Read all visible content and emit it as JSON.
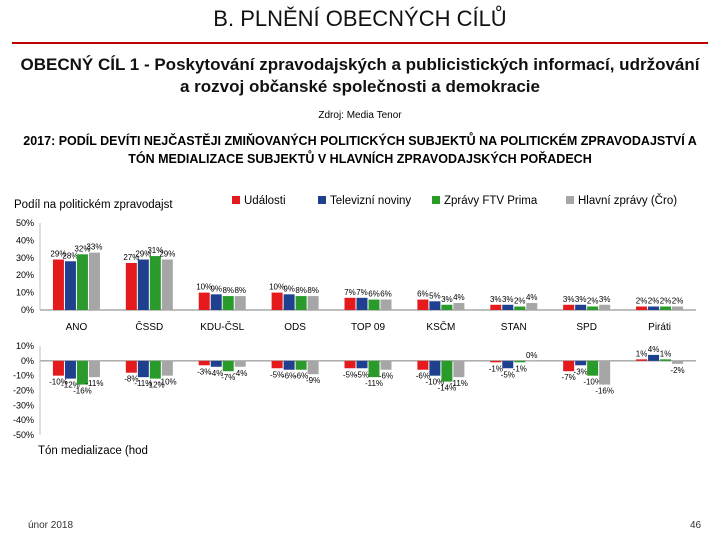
{
  "page": {
    "title": "B. PLNĚNÍ OBECNÝCH CÍLŮ",
    "goal": "OBECNÝ CÍL 1 - Poskytování zpravodajských a publicistických informací, udržování a rozvoj občanské společnosti a demokracie",
    "source": "Zdroj: Media Tenor",
    "subtitle": "2017: PODÍL DEVÍTI NEJČASTĚJI ZMIŇOVANÝCH POLITICKÝCH SUBJEKTŮ NA POLITICKÉM ZPRAVODAJSTVÍ A TÓN MEDIALIZACE SUBJEKTŮ V HLAVNÍCH ZPRAVODAJSKÝCH POŘADECH",
    "date": "únor 2018",
    "page_number": "46"
  },
  "colors": {
    "accent_line": "#c00000",
    "series": [
      "#e41a1c",
      "#1f3f8f",
      "#2a9a2a",
      "#a6a6a6"
    ]
  },
  "chart_data": [
    {
      "type": "bar",
      "title": "Podíl na politickém zpravodajst",
      "categories": [
        "ANO",
        "ČSSD",
        "KDU-ČSL",
        "ODS",
        "TOP 09",
        "KSČM",
        "STAN",
        "SPD",
        "Piráti"
      ],
      "series": [
        {
          "name": "Události",
          "values": [
            29,
            27,
            10,
            10,
            7,
            6,
            3,
            3,
            2
          ]
        },
        {
          "name": "Televizní noviny",
          "values": [
            28,
            29,
            9,
            9,
            7,
            5,
            3,
            3,
            2
          ]
        },
        {
          "name": "Zprávy FTV Prima",
          "values": [
            32,
            31,
            8,
            8,
            6,
            3,
            2,
            2,
            2
          ]
        },
        {
          "name": "Hlavní zprávy (Čro)",
          "values": [
            33,
            29,
            8,
            8,
            6,
            4,
            4,
            3,
            2
          ]
        }
      ],
      "value_labels": [
        [
          "29%",
          "28%",
          "32%",
          "33%"
        ],
        [
          "27%",
          "29%",
          "31%",
          "29%"
        ],
        [
          "10%",
          "9%",
          "8%",
          "8%"
        ],
        [
          "10%",
          "9%",
          "8%",
          "8%"
        ],
        [
          "7%",
          "7%",
          "6%",
          "6%"
        ],
        [
          "6%",
          "5%",
          "3%",
          "4%"
        ],
        [
          "3%",
          "3%",
          "2%",
          "4%"
        ],
        [
          "3%",
          "3%",
          "2%",
          "3%"
        ],
        [
          "2%",
          "2%",
          "2%",
          "2%"
        ]
      ],
      "ylim": [
        0,
        50
      ],
      "yticks": [
        "50%",
        "40%",
        "30%",
        "20%",
        "10%",
        "0%"
      ],
      "legend": "top-right"
    },
    {
      "type": "bar",
      "title": "Tón medializace (hod",
      "categories": [
        "ANO",
        "ČSSD",
        "KDU-ČSL",
        "ODS",
        "TOP 09",
        "KSČM",
        "STAN",
        "SPD",
        "Piráti"
      ],
      "series": [
        {
          "name": "Události",
          "values": [
            -10,
            -8,
            -3,
            -5,
            -5,
            -6,
            -1,
            -7,
            1
          ]
        },
        {
          "name": "Televizní noviny",
          "values": [
            -12,
            -11,
            -4,
            -6,
            -5,
            -10,
            -5,
            -3,
            4
          ]
        },
        {
          "name": "Zprávy FTV Prima",
          "values": [
            -16,
            -12,
            -7,
            -6,
            -11,
            -14,
            -1,
            -10,
            1
          ]
        },
        {
          "name": "Hlavní zprávy (Čro)",
          "values": [
            -11,
            -10,
            -4,
            -9,
            -6,
            -11,
            0,
            -16,
            -2
          ]
        }
      ],
      "value_labels": [
        [
          "-10%",
          "-12%",
          "-16%",
          "-11%"
        ],
        [
          "-8%",
          "-11%",
          "-12%",
          "-10%"
        ],
        [
          "-3%",
          "-4%",
          "-7%",
          "-4%"
        ],
        [
          "-5%",
          "-6%",
          "-6%",
          "-9%"
        ],
        [
          "-5%",
          "-5%",
          "-11%",
          "-6%"
        ],
        [
          "-6%",
          "-10%",
          "-14%",
          "-11%"
        ],
        [
          "-1%",
          "-5%",
          "-1%",
          "0%"
        ],
        [
          "-7%",
          "-3%",
          "-10%",
          "-16%"
        ],
        [
          "1%",
          "4%",
          "1%",
          "-2%"
        ]
      ],
      "ylim": [
        -50,
        10
      ],
      "yticks": [
        "10%",
        "0%",
        "-10%",
        "-20%",
        "-30%",
        "-40%",
        "-50%"
      ]
    }
  ]
}
